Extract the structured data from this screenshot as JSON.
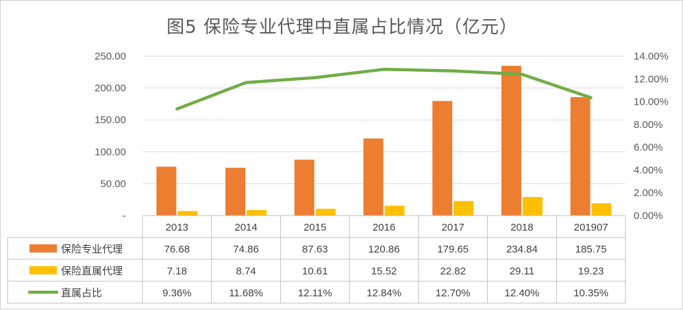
{
  "chart_data": {
    "type": "bar",
    "title": "图5  保险专业代理中直属占比情况（亿元）",
    "categories": [
      "2013",
      "2014",
      "2015",
      "2016",
      "2017",
      "2018",
      "201907"
    ],
    "series": [
      {
        "name": "保险专业代理",
        "kind": "bar",
        "axis": "left",
        "color": "#ED7D31",
        "values": [
          76.68,
          74.86,
          87.63,
          120.86,
          179.65,
          234.84,
          185.75
        ],
        "labels": [
          "76.68",
          "74.86",
          "87.63",
          "120.86",
          "179.65",
          "234.84",
          "185.75"
        ]
      },
      {
        "name": "保险直属代理",
        "kind": "bar",
        "axis": "left",
        "color": "#FFC000",
        "values": [
          7.18,
          8.74,
          10.61,
          15.52,
          22.82,
          29.11,
          19.23
        ],
        "labels": [
          "7.18",
          "8.74",
          "10.61",
          "15.52",
          "22.82",
          "29.11",
          "19.23"
        ]
      },
      {
        "name": "直属占比",
        "kind": "line",
        "axis": "right",
        "color": "#70AD47",
        "values": [
          9.36,
          11.68,
          12.11,
          12.84,
          12.7,
          12.4,
          10.35
        ],
        "labels": [
          "9.36%",
          "11.68%",
          "12.11%",
          "12.84%",
          "12.70%",
          "12.40%",
          "10.35%"
        ]
      }
    ],
    "y_left": {
      "ylim": [
        0,
        250
      ],
      "ticks": [
        0,
        50,
        100,
        150,
        200,
        250
      ],
      "tick_labels": [
        "-",
        "50.00",
        "100.00",
        "150.00",
        "200.00",
        "250.00"
      ]
    },
    "y_right": {
      "ylim": [
        0,
        14
      ],
      "ticks": [
        0,
        2,
        4,
        6,
        8,
        10,
        12,
        14
      ],
      "tick_labels": [
        "0.00%",
        "2.00%",
        "4.00%",
        "6.00%",
        "8.00%",
        "10.00%",
        "12.00%",
        "14.00%"
      ]
    },
    "grid": true,
    "legend": "data-table"
  }
}
